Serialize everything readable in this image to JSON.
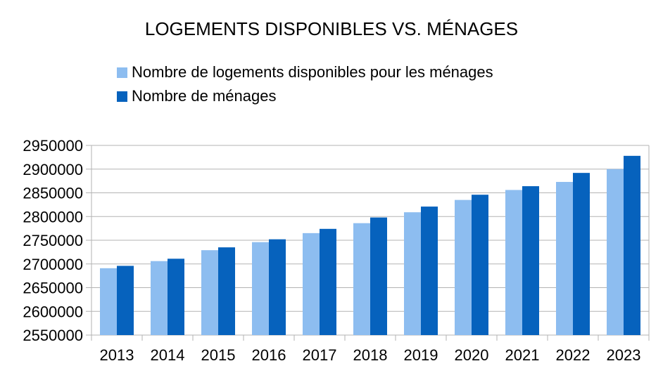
{
  "chart_data": {
    "type": "bar",
    "title": "LOGEMENTS DISPONIBLES VS. MÉNAGES",
    "xlabel": "",
    "ylabel": "",
    "categories": [
      "2013",
      "2014",
      "2015",
      "2016",
      "2017",
      "2018",
      "2019",
      "2020",
      "2021",
      "2022",
      "2023"
    ],
    "series": [
      {
        "name": "Nombre de logements disponibles pour les ménages",
        "color": "#8dbdf0",
        "values": [
          2691000,
          2706000,
          2729000,
          2746000,
          2765000,
          2786000,
          2809000,
          2835000,
          2856000,
          2873000,
          2900000
        ]
      },
      {
        "name": "Nombre de ménages",
        "color": "#0662bd",
        "values": [
          2696000,
          2711000,
          2735000,
          2752000,
          2774000,
          2798000,
          2821000,
          2846000,
          2864000,
          2892000,
          2928000
        ]
      }
    ],
    "ylim": [
      2550000,
      2950000
    ],
    "yticks": [
      "2950000",
      "2900000",
      "2850000",
      "2800000",
      "2750000",
      "2700000",
      "2650000",
      "2600000",
      "2550000"
    ],
    "grid": true,
    "legend_position": "top-left"
  }
}
